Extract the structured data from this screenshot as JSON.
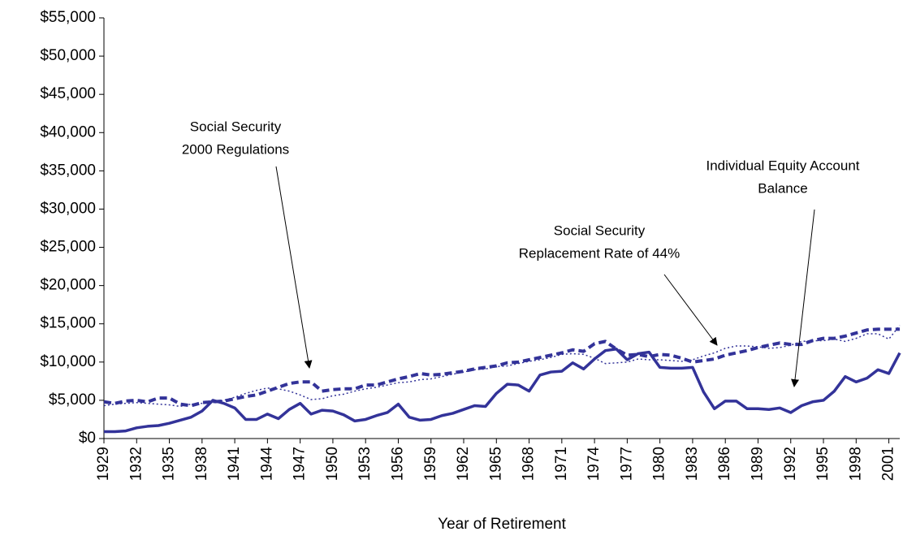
{
  "chart_data": {
    "type": "line",
    "x_label": "Year of Retirement",
    "x": [
      1929,
      1930,
      1931,
      1932,
      1933,
      1934,
      1935,
      1936,
      1937,
      1938,
      1939,
      1940,
      1941,
      1942,
      1943,
      1944,
      1945,
      1946,
      1947,
      1948,
      1949,
      1950,
      1951,
      1952,
      1953,
      1954,
      1955,
      1956,
      1957,
      1958,
      1959,
      1960,
      1961,
      1962,
      1963,
      1964,
      1965,
      1966,
      1967,
      1968,
      1969,
      1970,
      1971,
      1972,
      1973,
      1974,
      1975,
      1976,
      1977,
      1978,
      1979,
      1980,
      1981,
      1982,
      1983,
      1984,
      1985,
      1986,
      1987,
      1988,
      1989,
      1990,
      1991,
      1992,
      1993,
      1994,
      1995,
      1996,
      1997,
      1998,
      1999,
      2000,
      2001,
      2002
    ],
    "xlim": [
      1929,
      2002
    ],
    "xticks": [
      1929,
      1932,
      1935,
      1938,
      1941,
      1944,
      1947,
      1950,
      1953,
      1956,
      1959,
      1962,
      1965,
      1968,
      1971,
      1974,
      1977,
      1980,
      1983,
      1986,
      1989,
      1992,
      1995,
      1998,
      2001
    ],
    "ylim": [
      0,
      55000
    ],
    "yticks": [
      {
        "value": 0,
        "label": "$0"
      },
      {
        "value": 5000,
        "label": "$5,000"
      },
      {
        "value": 10000,
        "label": "$10,000"
      },
      {
        "value": 15000,
        "label": "$15,000"
      },
      {
        "value": 20000,
        "label": "$20,000"
      },
      {
        "value": 25000,
        "label": "$25,000"
      },
      {
        "value": 30000,
        "label": "$30,000"
      },
      {
        "value": 35000,
        "label": "$35,000"
      },
      {
        "value": 40000,
        "label": "$40,000"
      },
      {
        "value": 45000,
        "label": "$45,000"
      },
      {
        "value": 50000,
        "label": "$50,000"
      },
      {
        "value": 55000,
        "label": "$55,000"
      }
    ],
    "grid": false,
    "series": [
      {
        "name": "Individual Equity Account Balance",
        "color": "#333399",
        "style": "solid",
        "values": [
          900,
          900,
          1000,
          1400,
          1600,
          1700,
          2000,
          2400,
          2800,
          3600,
          5000,
          4600,
          4000,
          2500,
          2500,
          3200,
          2600,
          3800,
          4600,
          3200,
          3700,
          3600,
          3100,
          2300,
          2500,
          3000,
          3400,
          4500,
          2800,
          2400,
          2500,
          3000,
          3300,
          3800,
          4300,
          4200,
          5900,
          7100,
          7000,
          6200,
          8300,
          8700,
          8800,
          9900,
          9100,
          10400,
          11500,
          11700,
          10300,
          11100,
          11300,
          9300,
          9200,
          9200,
          9300,
          6100,
          3900,
          4900,
          4900,
          3900,
          3900,
          3800,
          4000,
          3400,
          4300,
          4800,
          5000,
          6200,
          8100,
          7400,
          7900,
          9000,
          8500,
          11200
        ]
      },
      {
        "name": "Social Security 2000 Regulations",
        "color": "#333399",
        "style": "dashed",
        "values": [
          4800,
          4600,
          4900,
          5000,
          4800,
          5300,
          5300,
          4500,
          4300,
          4700,
          4800,
          4900,
          5200,
          5500,
          5700,
          6200,
          6700,
          7200,
          7400,
          7400,
          6200,
          6400,
          6500,
          6500,
          7000,
          7000,
          7400,
          7800,
          8100,
          8500,
          8300,
          8400,
          8600,
          8800,
          9100,
          9300,
          9500,
          9900,
          10000,
          10300,
          10600,
          10900,
          11200,
          11600,
          11400,
          12400,
          12700,
          11700,
          10900,
          11000,
          10700,
          11000,
          10900,
          10500,
          10000,
          10200,
          10400,
          10900,
          11200,
          11500,
          11900,
          12200,
          12500,
          12300,
          12300,
          12800,
          13100,
          13100,
          13400,
          13800,
          14200,
          14300,
          14300,
          14300
        ]
      },
      {
        "name": "Social Security Replacement Rate of 44%",
        "color": "#333399",
        "style": "dotted",
        "values": [
          4300,
          4500,
          4600,
          4700,
          4600,
          4500,
          4400,
          4200,
          4500,
          4600,
          4700,
          5000,
          5400,
          5900,
          6300,
          6600,
          6500,
          6200,
          5700,
          5100,
          5200,
          5600,
          5800,
          6200,
          6500,
          6700,
          7000,
          7300,
          7400,
          7700,
          7800,
          8100,
          8400,
          8700,
          9000,
          9100,
          9400,
          9500,
          9800,
          10100,
          10300,
          10600,
          11000,
          11100,
          11000,
          10500,
          9800,
          9900,
          10000,
          10400,
          10300,
          10300,
          10200,
          10100,
          10300,
          10800,
          11200,
          11800,
          12100,
          12100,
          12000,
          11800,
          11900,
          12200,
          12700,
          12800,
          12800,
          13000,
          12700,
          13100,
          13700,
          13700,
          13000,
          14800
        ]
      }
    ],
    "annotations": [
      {
        "lines": [
          "Social Security",
          "2000 Regulations"
        ]
      },
      {
        "lines": [
          "Social Security",
          "Replacement Rate of 44%"
        ]
      },
      {
        "lines": [
          "Individual Equity Account",
          "Balance"
        ]
      }
    ]
  }
}
